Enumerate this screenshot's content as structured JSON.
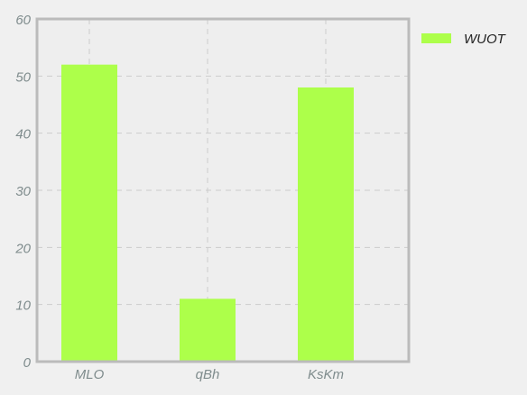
{
  "chart_data": {
    "type": "bar",
    "categories": [
      "MLO",
      "qBh",
      "KsKm"
    ],
    "series": [
      {
        "name": "WUOT",
        "values": [
          52,
          11,
          48
        ]
      }
    ],
    "ylim": [
      0,
      60
    ],
    "yticks": [
      0,
      10,
      20,
      30,
      40,
      50,
      60
    ],
    "grid": true,
    "legend_position": "top-right",
    "colors": {
      "bar": "#adff4a",
      "plot_bg": "#eeeeee",
      "page_bg": "#f0f0f0",
      "axis": "#bbbbbb",
      "grid": "#cccccc",
      "tick_text": "#7f8c8d",
      "legend_text": "#222222"
    }
  }
}
